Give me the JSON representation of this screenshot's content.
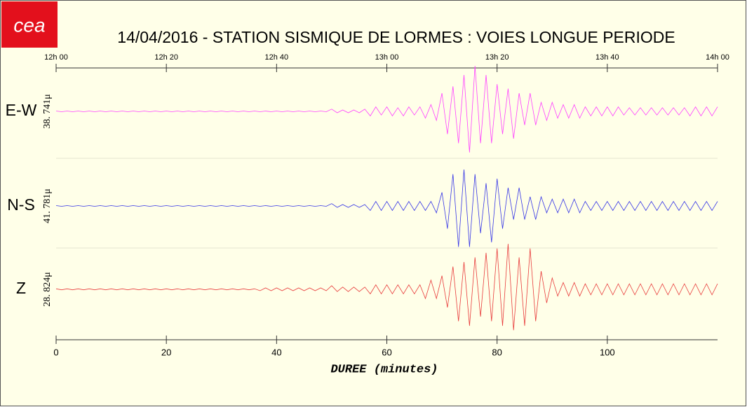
{
  "chart_data": {
    "type": "seismogram",
    "logo": "cea",
    "title": "14/04/2016  -  STATION SISMIQUE DE LORMES : VOIES LONGUE PERIODE",
    "x_label": "DUREE (minutes)",
    "xlim": [
      0,
      120
    ],
    "xticks": [
      0,
      20,
      40,
      60,
      80,
      100
    ],
    "top_xticks": [
      {
        "value": 0,
        "label": "12h 00"
      },
      {
        "value": 20,
        "label": "12h 20"
      },
      {
        "value": 40,
        "label": "12h 40"
      },
      {
        "value": 60,
        "label": "13h 00"
      },
      {
        "value": 80,
        "label": "13h 20"
      },
      {
        "value": 100,
        "label": "13h 40"
      },
      {
        "value": 120,
        "label": "14h 00"
      }
    ],
    "x": [
      0,
      1,
      2,
      3,
      4,
      5,
      6,
      7,
      8,
      9,
      10,
      11,
      12,
      13,
      14,
      15,
      16,
      17,
      18,
      19,
      20,
      21,
      22,
      23,
      24,
      25,
      26,
      27,
      28,
      29,
      30,
      31,
      32,
      33,
      34,
      35,
      36,
      37,
      38,
      39,
      40,
      41,
      42,
      43,
      44,
      45,
      46,
      47,
      48,
      49,
      50,
      51,
      52,
      53,
      54,
      55,
      56,
      57,
      58,
      59,
      60,
      61,
      62,
      63,
      64,
      65,
      66,
      67,
      68,
      69,
      70,
      71,
      72,
      73,
      74,
      75,
      76,
      77,
      78,
      79,
      80,
      81,
      82,
      83,
      84,
      85,
      86,
      87,
      88,
      89,
      90,
      91,
      92,
      93,
      94,
      95,
      96,
      97,
      98,
      99,
      100,
      101,
      102,
      103,
      104,
      105,
      106,
      107,
      108,
      109,
      110,
      111,
      112,
      113,
      114,
      115,
      116,
      117,
      118,
      119,
      120
    ],
    "series": [
      {
        "name": "E-W",
        "color": "#ff40ff",
        "scale_label": "38. 741μ",
        "ylim": [
          -38.741,
          38.741
        ],
        "values": [
          0.3,
          -0.3,
          0.3,
          -0.3,
          0.3,
          -0.3,
          0.3,
          -0.3,
          0.3,
          -0.3,
          0.3,
          -0.3,
          0.3,
          -0.3,
          0.3,
          -0.3,
          0.3,
          -0.3,
          0.3,
          -0.3,
          0.3,
          -0.3,
          0.3,
          -0.3,
          0.3,
          -0.3,
          0.3,
          -0.3,
          0.3,
          -0.3,
          0.3,
          -0.3,
          0.3,
          -0.3,
          0.3,
          -0.3,
          0.3,
          -0.3,
          0.3,
          -0.3,
          0.3,
          -0.3,
          0.3,
          -0.3,
          0.3,
          -0.3,
          0.3,
          -0.3,
          0.3,
          -0.3,
          1.9,
          -1.2,
          1.2,
          -1.2,
          1.2,
          -1.2,
          1.9,
          -3.9,
          3.9,
          -3.1,
          3.9,
          -3.9,
          3.1,
          -3.9,
          3.9,
          -3.1,
          3.9,
          -5.8,
          5.8,
          -7.7,
          15.5,
          -19.4,
          21.3,
          -27.1,
          31.0,
          -34.9,
          38.7,
          -27.1,
          31.0,
          -27.1,
          23.2,
          -19.4,
          19.4,
          -23.2,
          15.5,
          -11.6,
          15.5,
          -11.6,
          7.7,
          -7.7,
          7.7,
          -5.8,
          5.8,
          -5.8,
          5.8,
          -5.8,
          3.9,
          -3.9,
          3.9,
          -3.9,
          3.9,
          -3.9,
          3.9,
          -3.1,
          3.1,
          -3.1,
          3.1,
          -3.1,
          3.1,
          -3.1,
          3.1,
          -3.1,
          3.1,
          -3.1,
          3.1,
          -3.9,
          3.9,
          -3.9,
          3.9,
          -3.9,
          3.9
        ]
      },
      {
        "name": "N-S",
        "color": "#3636e6",
        "scale_label": "41. 781μ",
        "ylim": [
          -41.781,
          41.781
        ],
        "values": [
          0.3,
          -0.3,
          0.3,
          -0.3,
          0.3,
          -0.3,
          0.3,
          -0.3,
          0.3,
          -0.3,
          0.3,
          -0.3,
          0.3,
          -0.3,
          0.3,
          -0.3,
          0.3,
          -0.3,
          0.3,
          -0.3,
          0.3,
          -0.3,
          0.3,
          -0.3,
          0.3,
          -0.3,
          0.3,
          -0.3,
          0.3,
          -0.3,
          0.3,
          -0.3,
          0.3,
          -0.3,
          0.3,
          -0.3,
          0.3,
          -0.3,
          0.3,
          -0.3,
          0.3,
          -0.3,
          0.3,
          -0.3,
          0.3,
          -0.3,
          0.3,
          -0.3,
          0.3,
          -0.3,
          2.1,
          -1.3,
          1.3,
          -1.3,
          1.3,
          -1.3,
          1.3,
          -4.2,
          4.2,
          -4.2,
          4.2,
          -4.2,
          4.2,
          -4.2,
          4.2,
          -4.2,
          4.2,
          -4.2,
          4.2,
          -6.3,
          12.5,
          -20.9,
          29.2,
          -37.6,
          33.4,
          -37.6,
          29.2,
          -25.1,
          20.9,
          -33.4,
          25.1,
          -20.9,
          16.7,
          -12.5,
          16.7,
          -12.5,
          8.4,
          -12.5,
          8.4,
          -6.3,
          6.3,
          -6.3,
          6.3,
          -6.3,
          6.3,
          -6.3,
          4.2,
          -4.2,
          4.2,
          -4.2,
          4.2,
          -4.2,
          4.2,
          -4.2,
          4.2,
          -4.2,
          4.2,
          -4.2,
          4.2,
          -4.2,
          4.2,
          -4.2,
          4.2,
          -4.2,
          4.2,
          -4.2,
          4.2,
          -4.2,
          4.2,
          -4.2,
          4.2
        ]
      },
      {
        "name": "Z",
        "color": "#e83a3a",
        "scale_label": "28. 824μ",
        "ylim": [
          -28.824,
          28.824
        ],
        "values": [
          0.3,
          -0.3,
          0.3,
          -0.3,
          0.3,
          -0.3,
          0.3,
          -0.3,
          0.3,
          -0.3,
          0.3,
          -0.3,
          0.3,
          -0.3,
          0.3,
          -0.3,
          0.3,
          -0.3,
          0.3,
          -0.3,
          0.3,
          -0.3,
          0.3,
          -0.3,
          0.3,
          -0.3,
          0.3,
          -0.3,
          0.3,
          -0.3,
          0.3,
          -0.3,
          0.3,
          -0.3,
          0.3,
          -0.3,
          0.3,
          -0.9,
          0.9,
          -0.9,
          0.9,
          -0.9,
          0.9,
          -0.9,
          0.9,
          -0.9,
          0.9,
          -0.9,
          0.9,
          -0.9,
          2.3,
          -1.4,
          1.4,
          -1.4,
          1.4,
          -1.4,
          1.4,
          -2.9,
          2.9,
          -2.9,
          2.9,
          -2.9,
          2.9,
          -2.9,
          2.9,
          -2.9,
          2.9,
          -5.8,
          5.8,
          -5.8,
          8.6,
          -11.5,
          14.4,
          -20.2,
          17.3,
          -23.1,
          20.2,
          -17.3,
          23.1,
          -20.2,
          25.9,
          -23.1,
          28.8,
          -25.9,
          20.2,
          -23.1,
          25.9,
          -20.2,
          11.5,
          -8.6,
          7.2,
          -4.3,
          4.3,
          -4.3,
          4.3,
          -4.3,
          3.5,
          -3.5,
          3.5,
          -3.5,
          3.5,
          -3.5,
          3.5,
          -3.5,
          3.5,
          -3.5,
          3.5,
          -3.5,
          3.5,
          -3.5,
          3.5,
          -3.5,
          3.5,
          -3.5,
          3.5,
          -3.5,
          3.5,
          -3.5,
          3.5,
          -3.5,
          3.5
        ]
      }
    ]
  }
}
